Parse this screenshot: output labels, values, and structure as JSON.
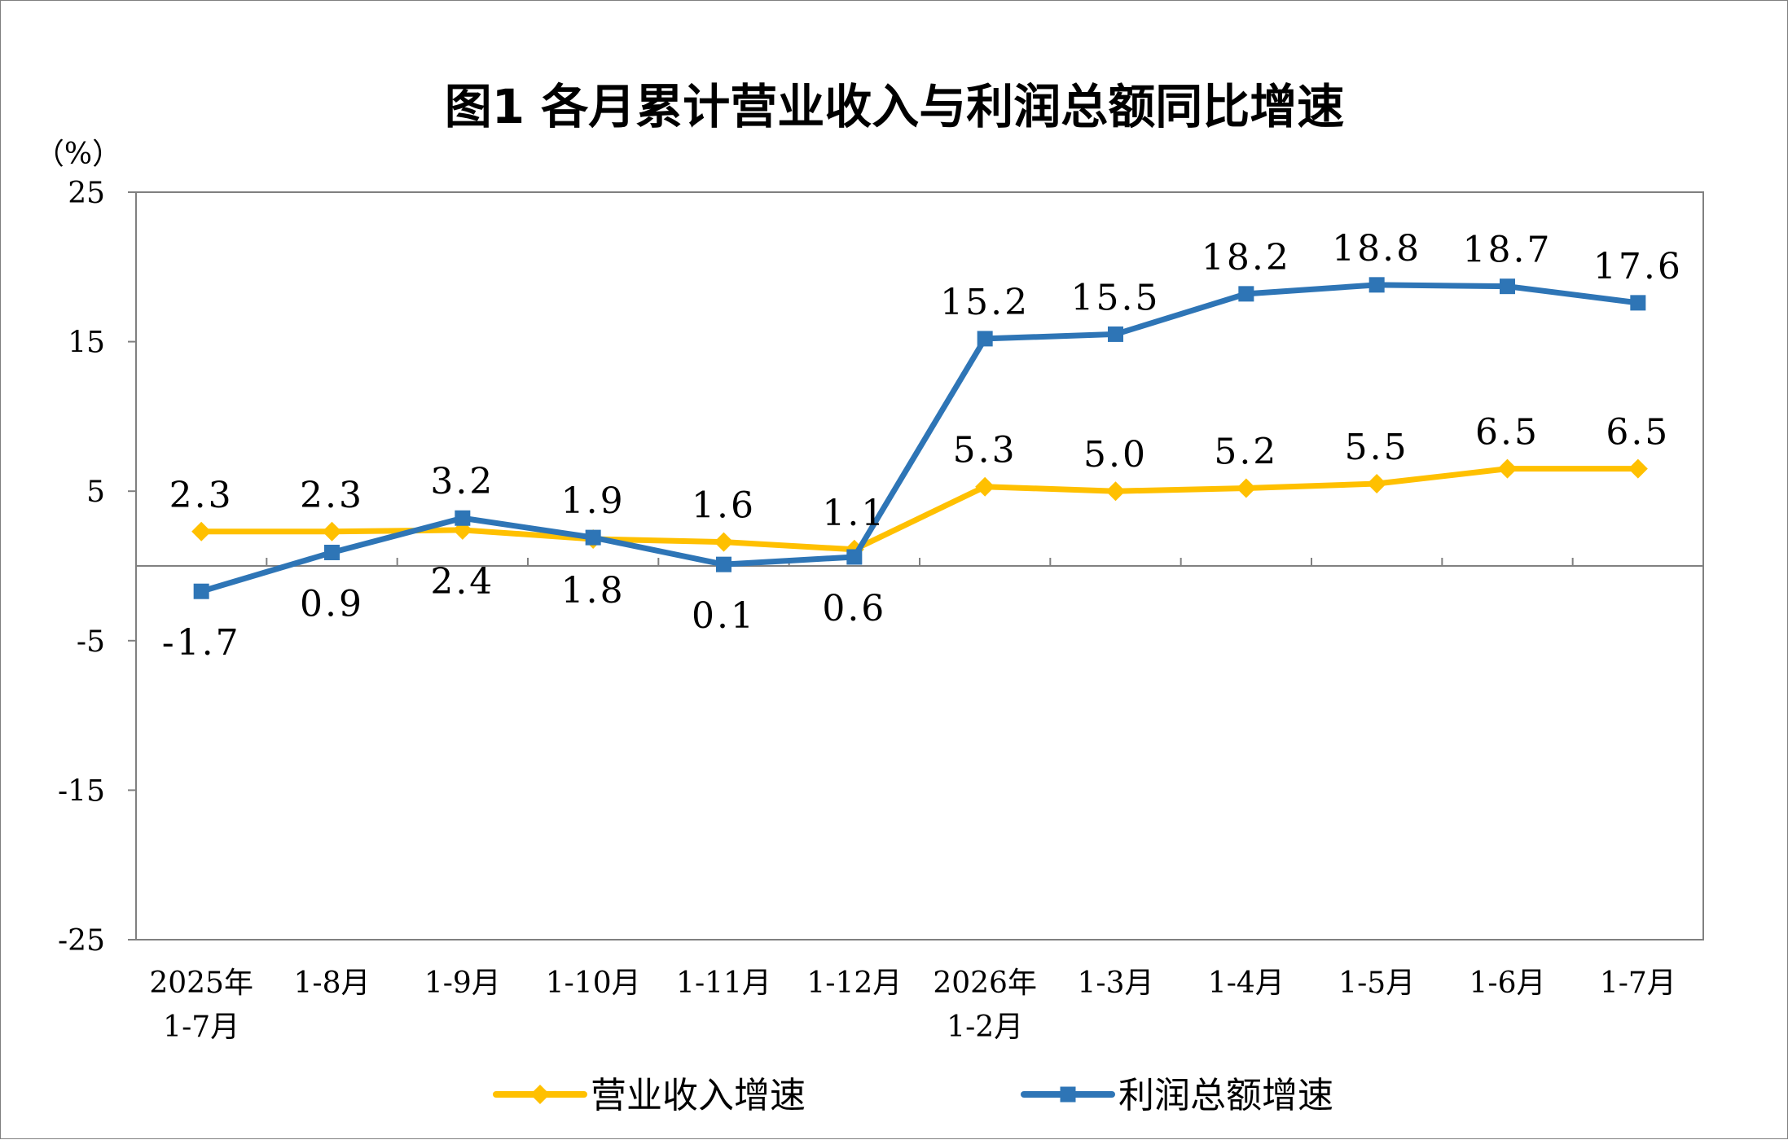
{
  "chart_data": {
    "type": "line",
    "title": "图1  各月累计营业收入与利润总额同比增速",
    "ylabel": "（%）",
    "ylim": [
      -25,
      25
    ],
    "yticks": [
      "25",
      "15",
      "5",
      "-5",
      "-15",
      "-25"
    ],
    "ytick_values": [
      25,
      15,
      5,
      -5,
      -15,
      -25
    ],
    "categories": [
      [
        "2025年",
        "1-7月"
      ],
      [
        "1-8月"
      ],
      [
        "1-9月"
      ],
      [
        "1-10月"
      ],
      [
        "1-11月"
      ],
      [
        "1-12月"
      ],
      [
        "2026年",
        "1-2月"
      ],
      [
        "1-3月"
      ],
      [
        "1-4月"
      ],
      [
        "1-5月"
      ],
      [
        "1-6月"
      ],
      [
        "1-7月"
      ]
    ],
    "series": [
      {
        "name": "营业收入增速",
        "color": "#FFC000",
        "marker": "diamond",
        "values": [
          2.3,
          2.3,
          2.4,
          1.8,
          1.6,
          1.1,
          5.3,
          5.0,
          5.2,
          5.5,
          6.5,
          6.5
        ],
        "labels": [
          "2.3",
          "2.3",
          "2.4",
          "1.8",
          "1.6",
          "1.1",
          "5.3",
          "5.0",
          "5.2",
          "5.5",
          "6.5",
          "6.5"
        ]
      },
      {
        "name": "利润总额增速",
        "color": "#2E75B6",
        "marker": "square",
        "values": [
          -1.7,
          0.9,
          3.2,
          1.9,
          0.1,
          0.6,
          15.2,
          15.5,
          18.2,
          18.8,
          18.7,
          17.6
        ],
        "labels": [
          "-1.7",
          "0.9",
          "3.2",
          "1.9",
          "0.1",
          "0.6",
          "15.2",
          "15.5",
          "18.2",
          "18.8",
          "18.7",
          "17.6"
        ]
      }
    ],
    "legend": "bottom",
    "grid": false
  }
}
